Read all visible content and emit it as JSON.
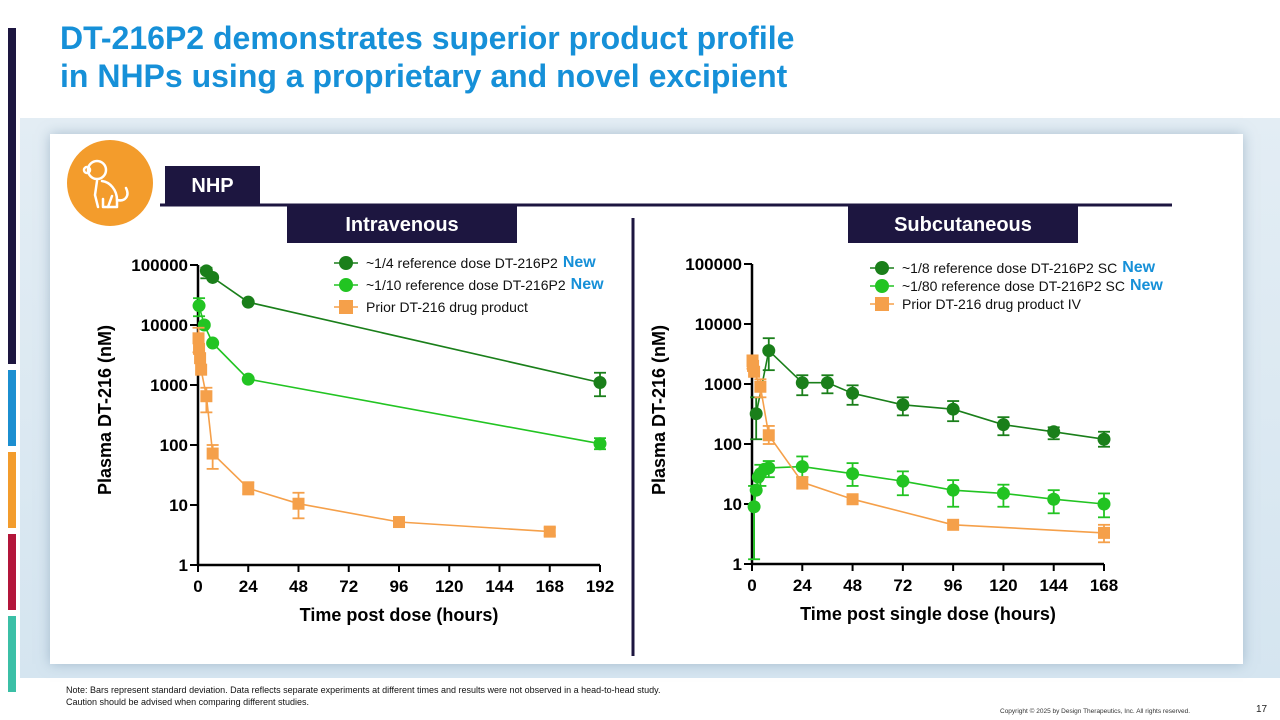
{
  "slide": {
    "title_lines": [
      "DT-216P2 demonstrates superior product profile",
      "in NHPs using a proprietary and novel excipient"
    ],
    "note": "Note: Bars represent standard deviation. Data reflects separate experiments at different times and results were not observed in a head-to-head study.  Caution should be advised when comparing different studies.",
    "copyright": "Copyright © 2025 by Design Therapeutics, Inc. All rights reserved.",
    "page_number": "17",
    "species_label": "NHP",
    "icon": "monkey-icon",
    "colors": {
      "title": "#1690d8",
      "navy": "#1d1640",
      "icon_circle": "#f39c2c",
      "new_badge": "#1690d8"
    }
  },
  "chart_data": [
    {
      "type": "line",
      "panel_title": "Intravenous",
      "xlabel": "Time post dose (hours)",
      "ylabel": "Plasma DT-216 (nM)",
      "yscale": "log",
      "ylim": [
        1,
        100000
      ],
      "yticks": [
        1,
        10,
        100,
        1000,
        10000,
        100000
      ],
      "yticklabels": [
        "1",
        "10",
        "100",
        "1000",
        "10000",
        "100000"
      ],
      "xlim": [
        0,
        192
      ],
      "xticks": [
        0,
        24,
        48,
        72,
        96,
        120,
        144,
        168,
        192
      ],
      "xticklabels": [
        "0",
        "24",
        "48",
        "72",
        "96",
        "120",
        "144",
        "168",
        "192"
      ],
      "legend_position": "top-right",
      "series": [
        {
          "name": "~1/4 reference dose DT-216P2",
          "badge": "New",
          "color": "#1a7f1a",
          "marker": "circle",
          "points": [
            [
              4,
              80000
            ],
            [
              7,
              62000
            ],
            [
              24,
              24000
            ],
            [
              192,
              1100
            ]
          ],
          "err": [
            [
              4,
              60000,
              90000
            ],
            [
              192,
              650,
              1600
            ]
          ]
        },
        {
          "name": "~1/10 reference dose DT-216P2",
          "badge": "New",
          "color": "#22c422",
          "marker": "circle",
          "points": [
            [
              0.5,
              21000
            ],
            [
              3,
              10000
            ],
            [
              7,
              5000
            ],
            [
              24,
              1250
            ],
            [
              192,
              105
            ]
          ],
          "err": [
            [
              0.5,
              14000,
              28000
            ],
            [
              192,
              85,
              130
            ]
          ]
        },
        {
          "name": "Prior DT-216 drug product",
          "badge": "",
          "color": "#f5a04a",
          "marker": "square",
          "points": [
            [
              0.25,
              6000
            ],
            [
              0.5,
              4000
            ],
            [
              1,
              2800
            ],
            [
              1.5,
              1800
            ],
            [
              4,
              650
            ],
            [
              7,
              72
            ],
            [
              24,
              19
            ],
            [
              48,
              10.5
            ],
            [
              96,
              5.2
            ],
            [
              168,
              3.6
            ]
          ],
          "err": [
            [
              0.25,
              3500,
              9000
            ],
            [
              4,
              350,
              900
            ],
            [
              7,
              40,
              100
            ],
            [
              24,
              15,
              24
            ],
            [
              48,
              6,
              16
            ],
            [
              168,
              3.1,
              4.2
            ]
          ]
        }
      ]
    },
    {
      "type": "line",
      "panel_title": "Subcutaneous",
      "xlabel": "Time post single dose (hours)",
      "ylabel": "Plasma DT-216 (nM)",
      "yscale": "log",
      "ylim": [
        1,
        100000
      ],
      "yticks": [
        1,
        10,
        100,
        1000,
        10000,
        100000
      ],
      "yticklabels": [
        "1",
        "10",
        "100",
        "1000",
        "10000",
        "100000"
      ],
      "xlim": [
        0,
        168
      ],
      "xticks": [
        0,
        24,
        48,
        72,
        96,
        120,
        144,
        168
      ],
      "xticklabels": [
        "0",
        "24",
        "48",
        "72",
        "96",
        "120",
        "144",
        "168"
      ],
      "legend_position": "top-right",
      "series": [
        {
          "name": "~1/8 reference dose DT-216P2 SC",
          "badge": "New",
          "color": "#1a7f1a",
          "marker": "circle",
          "points": [
            [
              2,
              320
            ],
            [
              8,
              3600
            ],
            [
              24,
              1050
            ],
            [
              36,
              1050
            ],
            [
              48,
              700
            ],
            [
              72,
              450
            ],
            [
              96,
              380
            ],
            [
              120,
              210
            ],
            [
              144,
              160
            ],
            [
              168,
              120
            ]
          ],
          "err": [
            [
              2,
              120,
              600
            ],
            [
              8,
              1700,
              5800
            ],
            [
              24,
              650,
              1400
            ],
            [
              36,
              700,
              1400
            ],
            [
              48,
              450,
              950
            ],
            [
              72,
              300,
              600
            ],
            [
              96,
              240,
              520
            ],
            [
              120,
              140,
              280
            ],
            [
              144,
              120,
              190
            ],
            [
              168,
              90,
              160
            ]
          ]
        },
        {
          "name": "~1/80 reference dose DT-216P2 SC",
          "badge": "New",
          "color": "#22c422",
          "marker": "circle",
          "points": [
            [
              1,
              9
            ],
            [
              2,
              17
            ],
            [
              3,
              28
            ],
            [
              4,
              32
            ],
            [
              6,
              38
            ],
            [
              8,
              40
            ],
            [
              24,
              42
            ],
            [
              48,
              32
            ],
            [
              72,
              24
            ],
            [
              96,
              17
            ],
            [
              120,
              15
            ],
            [
              144,
              12
            ],
            [
              168,
              10
            ]
          ],
          "err": [
            [
              1,
              1.2,
              20
            ],
            [
              4,
              20,
              45
            ],
            [
              8,
              28,
              52
            ],
            [
              24,
              28,
              62
            ],
            [
              48,
              20,
              48
            ],
            [
              72,
              14,
              35
            ],
            [
              96,
              9,
              25
            ],
            [
              120,
              9,
              21
            ],
            [
              144,
              7,
              17
            ],
            [
              168,
              6,
              15
            ]
          ]
        },
        {
          "name": "Prior DT-216 drug product IV",
          "badge": "",
          "color": "#f5a04a",
          "marker": "square",
          "points": [
            [
              0.25,
              2400
            ],
            [
              0.5,
              2000
            ],
            [
              1,
              1600
            ],
            [
              4,
              900
            ],
            [
              8,
              140
            ],
            [
              24,
              23
            ],
            [
              48,
              12
            ],
            [
              96,
              4.5
            ],
            [
              168,
              3.3
            ]
          ],
          "err": [
            [
              0.25,
              1800,
              3000
            ],
            [
              4,
              600,
              1200
            ],
            [
              8,
              100,
              200
            ],
            [
              24,
              18,
              28
            ],
            [
              168,
              2.3,
              4.5
            ]
          ]
        }
      ]
    }
  ]
}
